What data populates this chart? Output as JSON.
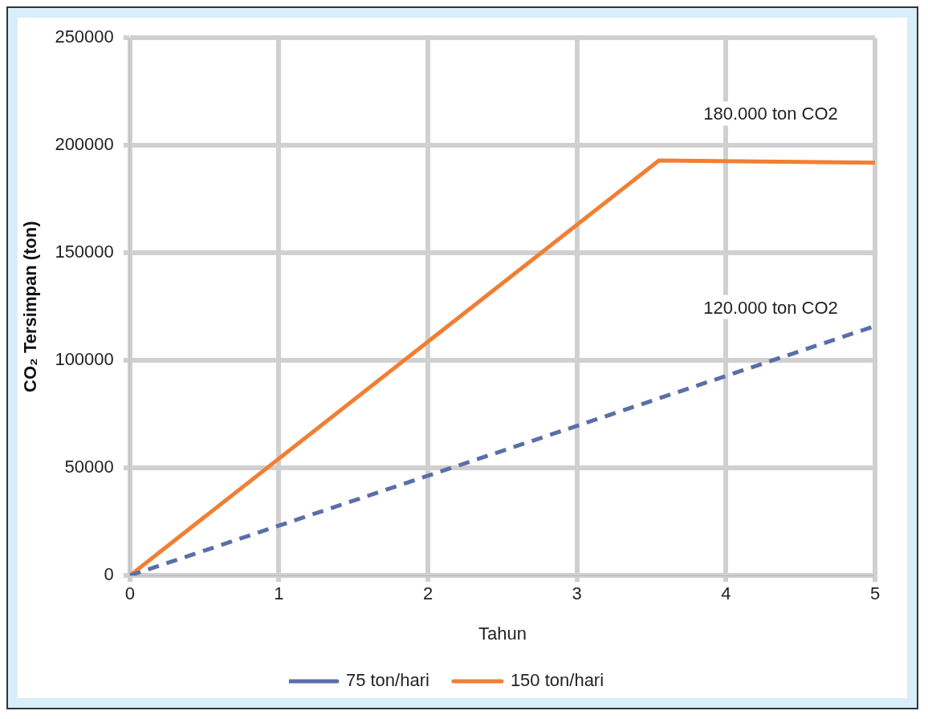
{
  "chart_data": {
    "type": "line",
    "xlabel": "Tahun",
    "ylabel": "CO₂ Tersimpan (ton)",
    "series": [
      {
        "name": "75 ton/hari",
        "color": "#5a6fa8",
        "line_style": "dashed",
        "x": [
          0,
          5
        ],
        "values": [
          0,
          116000
        ]
      },
      {
        "name": "150 ton/hari",
        "color": "#f07f34",
        "line_style": "solid",
        "x": [
          0,
          3.55,
          5
        ],
        "values": [
          0,
          193000,
          192000
        ]
      }
    ],
    "xlim": [
      0,
      5
    ],
    "xticks": [
      0,
      1,
      2,
      3,
      4,
      5
    ],
    "ylim": [
      0,
      250000
    ],
    "yticks": [
      0,
      50000,
      100000,
      150000,
      200000,
      250000
    ],
    "grid": true,
    "legend": "bottom",
    "marker": "none",
    "annotations": [
      "180.000 ton CO2",
      "120.000 ton CO2"
    ]
  }
}
